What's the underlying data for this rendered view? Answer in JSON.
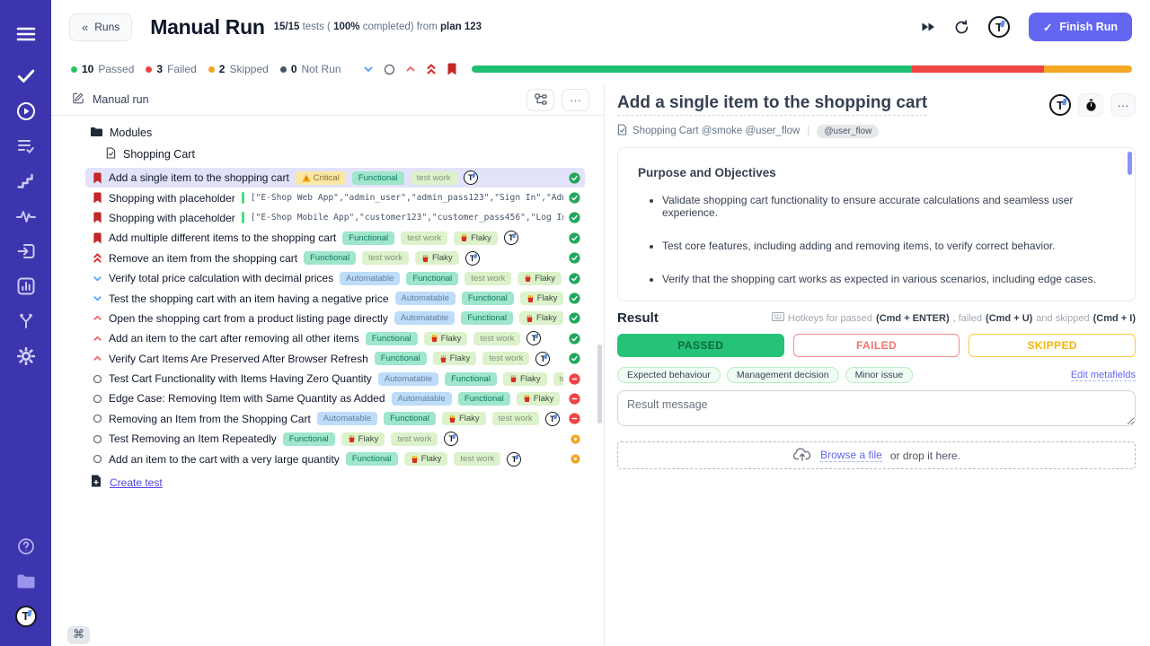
{
  "sidebar": {
    "icons": [
      "menu-icon",
      "tests-check-icon",
      "runs-play-icon",
      "plans-list-check-icon",
      "steps-icon",
      "pulse-icon",
      "import-icon",
      "analytics-chart-icon",
      "branches-icon",
      "settings-gear-icon"
    ],
    "bottom_icons": [
      "help-icon",
      "projects-folder-icon",
      "profile-logo"
    ]
  },
  "header": {
    "back_label": "Runs",
    "title": "Manual Run",
    "subtitle_parts": {
      "p1": "15/15",
      "p2": " tests ( ",
      "p3": "100%",
      "p4": " completed) from ",
      "p5": "plan 123"
    },
    "toolbar_icons": [
      "fast-forward-icon",
      "retry-timer-icon",
      "user-logo"
    ],
    "finish_label": "Finish Run",
    "accent_color": "#6366f1"
  },
  "stats": {
    "items": [
      {
        "value": "10",
        "label": "Passed",
        "color": "#22c55e"
      },
      {
        "value": "3",
        "label": "Failed",
        "color": "#ef4444"
      },
      {
        "value": "2",
        "label": "Skipped",
        "color": "#f5a623"
      },
      {
        "value": "0",
        "label": "Not Run",
        "color": "#475569"
      }
    ],
    "filter_icons": [
      "chevron-down-icon",
      "circle-icon",
      "chevron-up-icon",
      "double-chevron-up-icon",
      "bookmark-icon"
    ],
    "progress": [
      {
        "status": "passed",
        "color": "#1dbf73",
        "pct": 66.7
      },
      {
        "status": "failed",
        "color": "#ee4545",
        "pct": 20
      },
      {
        "status": "skipped",
        "color": "#f5a623",
        "pct": 13.3
      }
    ]
  },
  "tree": {
    "header_label": "Manual run",
    "header_icons": [
      "tree-structure-icon",
      "more-icon"
    ],
    "modules_label": "Modules",
    "suite_label": "Shopping Cart",
    "create_test_label": "Create test",
    "tests": [
      {
        "priority": "bookmark",
        "title": "Add a single item to the shopping cart",
        "badges": [
          {
            "type": "critical",
            "label": "Critical"
          },
          {
            "type": "functional",
            "label": "Functional"
          },
          {
            "type": "testwork",
            "label": "test work"
          }
        ],
        "avatar": true,
        "status": "passed",
        "selected": true
      },
      {
        "priority": "bookmark",
        "title": "Shopping with placeholder",
        "code": "[\"E-Shop Web App\",\"admin_user\",\"admin_pass123\",\"Sign In\",\"Admin Dash…",
        "badges": [],
        "avatar": false,
        "status": "passed"
      },
      {
        "priority": "bookmark",
        "title": "Shopping with placeholder",
        "code": "[\"E-Shop Mobile App\",\"customer123\",\"customer_pass456\",\"Log In\",\"Welc…",
        "badges": [],
        "avatar": false,
        "status": "passed"
      },
      {
        "priority": "bookmark",
        "title": "Add multiple different items to the shopping cart",
        "badges": [
          {
            "type": "functional",
            "label": "Functional"
          },
          {
            "type": "testwork",
            "label": "test work"
          },
          {
            "type": "flaky",
            "label": "Flaky"
          }
        ],
        "avatar": true,
        "status": "passed"
      },
      {
        "priority": "double-up",
        "title": "Remove an item from the shopping cart",
        "badges": [
          {
            "type": "functional",
            "label": "Functional"
          },
          {
            "type": "testwork",
            "label": "test work"
          },
          {
            "type": "flaky",
            "label": "Flaky"
          }
        ],
        "avatar": true,
        "status": "passed"
      },
      {
        "priority": "down",
        "title": "Verify total price calculation with decimal prices",
        "badges": [
          {
            "type": "automatable",
            "label": "Automatable"
          },
          {
            "type": "functional",
            "label": "Functional"
          },
          {
            "type": "testwork",
            "label": "test work"
          },
          {
            "type": "flaky",
            "label": "Flaky"
          }
        ],
        "avatar": true,
        "status": "passed"
      },
      {
        "priority": "down",
        "title": "Test the shopping cart with an item having a negative price",
        "badges": [
          {
            "type": "automatable",
            "label": "Automatable"
          },
          {
            "type": "functional",
            "label": "Functional"
          },
          {
            "type": "flaky",
            "label": "Flaky"
          },
          {
            "type": "testwork",
            "label": "test w"
          }
        ],
        "avatar": false,
        "status": "passed"
      },
      {
        "priority": "up",
        "title": "Open the shopping cart from a product listing page directly",
        "badges": [
          {
            "type": "automatable",
            "label": "Automatable"
          },
          {
            "type": "functional",
            "label": "Functional"
          },
          {
            "type": "flaky",
            "label": "Flaky"
          },
          {
            "type": "testwork",
            "label": "test w"
          }
        ],
        "avatar": false,
        "status": "passed"
      },
      {
        "priority": "up",
        "title": "Add an item to the cart after removing all other items",
        "badges": [
          {
            "type": "functional",
            "label": "Functional"
          },
          {
            "type": "flaky",
            "label": "Flaky"
          },
          {
            "type": "testwork",
            "label": "test work"
          }
        ],
        "avatar": true,
        "status": "passed"
      },
      {
        "priority": "up",
        "title": "Verify Cart Items Are Preserved After Browser Refresh",
        "badges": [
          {
            "type": "functional",
            "label": "Functional"
          },
          {
            "type": "flaky",
            "label": "Flaky"
          },
          {
            "type": "testwork",
            "label": "test work"
          }
        ],
        "avatar": true,
        "status": "passed"
      },
      {
        "priority": "circle",
        "title": "Test Cart Functionality with Items Having Zero Quantity",
        "badges": [
          {
            "type": "automatable",
            "label": "Automatable"
          },
          {
            "type": "functional",
            "label": "Functional"
          },
          {
            "type": "flaky",
            "label": "Flaky"
          },
          {
            "type": "testwork",
            "label": "test work"
          }
        ],
        "avatar": false,
        "status": "failed"
      },
      {
        "priority": "circle",
        "title": "Edge Case: Removing Item with Same Quantity as Added",
        "badges": [
          {
            "type": "automatable",
            "label": "Automatable"
          },
          {
            "type": "functional",
            "label": "Functional"
          },
          {
            "type": "flaky",
            "label": "Flaky"
          },
          {
            "type": "testwork",
            "label": "test wo"
          }
        ],
        "avatar": false,
        "status": "failed"
      },
      {
        "priority": "circle",
        "title": "Removing an Item from the Shopping Cart",
        "badges": [
          {
            "type": "automatable",
            "label": "Automatable"
          },
          {
            "type": "functional",
            "label": "Functional"
          },
          {
            "type": "flaky",
            "label": "Flaky"
          },
          {
            "type": "testwork",
            "label": "test work"
          }
        ],
        "avatar": true,
        "status": "failed"
      },
      {
        "priority": "circle",
        "title": "Test Removing an Item Repeatedly",
        "badges": [
          {
            "type": "functional",
            "label": "Functional"
          },
          {
            "type": "flaky",
            "label": "Flaky"
          },
          {
            "type": "testwork",
            "label": "test work"
          }
        ],
        "avatar": true,
        "status": "skipped"
      },
      {
        "priority": "circle",
        "title": "Add an item to the cart with a very large quantity",
        "badges": [
          {
            "type": "functional",
            "label": "Functional"
          },
          {
            "type": "flaky",
            "label": "Flaky"
          },
          {
            "type": "testwork",
            "label": "test work"
          }
        ],
        "avatar": true,
        "status": "skipped"
      }
    ]
  },
  "detail": {
    "title": "Add a single item to the shopping cart",
    "header_icons": [
      "assignee-avatar",
      "stopwatch-icon",
      "more-icon"
    ],
    "breadcrumb": "Shopping Cart @smoke @user_flow",
    "tag_badge": "@user_flow",
    "description": {
      "heading": "Purpose and Objectives",
      "bullets": [
        "Validate shopping cart functionality to ensure accurate calculations and seamless user experience.",
        "Test core features, including adding and removing items, to verify correct behavior.",
        "Verify that the shopping cart works as expected in various scenarios, including edge cases."
      ]
    },
    "result": {
      "heading": "Result",
      "hotkeys": {
        "pre": "Hotkeys for passed ",
        "k1": "(Cmd + ENTER)",
        "m1": " , failed ",
        "k2": "(Cmd + U)",
        "m2": " and skipped ",
        "k3": "(Cmd + I)"
      },
      "buttons": [
        {
          "type": "passed",
          "label": "PASSED",
          "color": "#25c277"
        },
        {
          "type": "failed",
          "label": "FAILED",
          "color": "#f87171"
        },
        {
          "type": "skipped",
          "label": "SKIPPED",
          "color": "#f5b50a"
        }
      ],
      "metafields": [
        "Expected behaviour",
        "Management decision",
        "Minor issue"
      ],
      "edit_metafields_label": "Edit metafields",
      "message_placeholder": "Result message",
      "dropzone": {
        "browse": "Browse a file",
        "rest": " or drop it here."
      }
    }
  }
}
